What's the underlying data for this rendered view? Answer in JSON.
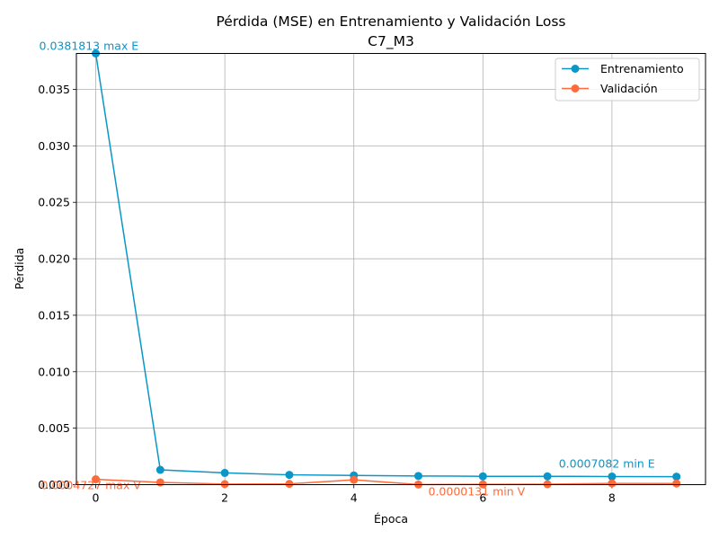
{
  "chart_data": {
    "type": "line",
    "title": "Pérdida (MSE) en Entrenamiento y Validación Loss",
    "subtitle": "C7_M3",
    "xlabel": "Época",
    "ylabel": "Pérdida",
    "x": [
      0,
      1,
      2,
      3,
      4,
      5,
      6,
      7,
      8,
      9
    ],
    "xlim": [
      -0.3,
      9.45
    ],
    "ylim": [
      0,
      0.0381813
    ],
    "xticks": [
      "0",
      "2",
      "4",
      "6",
      "8"
    ],
    "yticks": [
      "0.000",
      "0.005",
      "0.010",
      "0.015",
      "0.020",
      "0.025",
      "0.030",
      "0.035"
    ],
    "grid": true,
    "legend_position": "top-right",
    "series": [
      {
        "name": "Entrenamiento",
        "color": "#0a96c8",
        "values": [
          0.0381813,
          0.00131,
          0.00104,
          0.00087,
          0.00082,
          0.00077,
          0.00074,
          0.00074,
          0.00072,
          0.0007082
        ]
      },
      {
        "name": "Validación",
        "color": "#ff6a3a",
        "values": [
          0.0004727,
          0.0002,
          5e-05,
          7e-05,
          0.00043,
          1.31e-05,
          3e-05,
          4e-05,
          0.00011,
          0.0001
        ]
      }
    ],
    "annotations": [
      {
        "text": "0.0381813 max E",
        "x": 0,
        "y": 0.0381813,
        "series": 0
      },
      {
        "text": "0.0007082 min E",
        "x": 9,
        "y": 0.0007082,
        "series": 0
      },
      {
        "text": "0.0004727 max V",
        "x": 0,
        "y": 0.0004727,
        "series": 1
      },
      {
        "text": "0.0000131 min V",
        "x": 5,
        "y": 1.31e-05,
        "series": 1
      }
    ]
  }
}
